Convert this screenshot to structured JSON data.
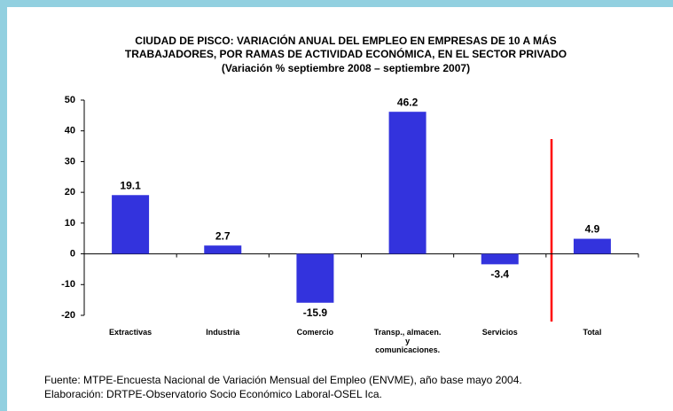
{
  "chart_data": {
    "type": "bar",
    "title": [
      "CIUDAD DE PISCO: VARIACIÓN ANUAL DEL EMPLEO EN EMPRESAS DE 10 A MÁS",
      "TRABAJADORES, POR RAMAS DE ACTIVIDAD ECONÓMICA, EN EL SECTOR PRIVADO",
      "(Variación % septiembre 2008 – septiembre 2007)"
    ],
    "categories": [
      "Extractivas",
      "Industria",
      "Comercio",
      "Transp., almacen. y comunicaciones.",
      "Servicios",
      "Total"
    ],
    "values": [
      19.1,
      2.7,
      -15.9,
      46.2,
      -3.4,
      4.9
    ],
    "color": "#3333dd",
    "ylim": [
      -20,
      50
    ],
    "yticks": [
      -20,
      -10,
      0,
      10,
      20,
      30,
      40,
      50
    ],
    "grid": false,
    "footer": [
      "Fuente: MTPE-Encuesta Nacional de Variación Mensual del Empleo (ENVME), año base mayo  2004.",
      "Elaboración: DRTPE-Observatorio Socio Económico Laboral-OSEL Ica."
    ]
  }
}
